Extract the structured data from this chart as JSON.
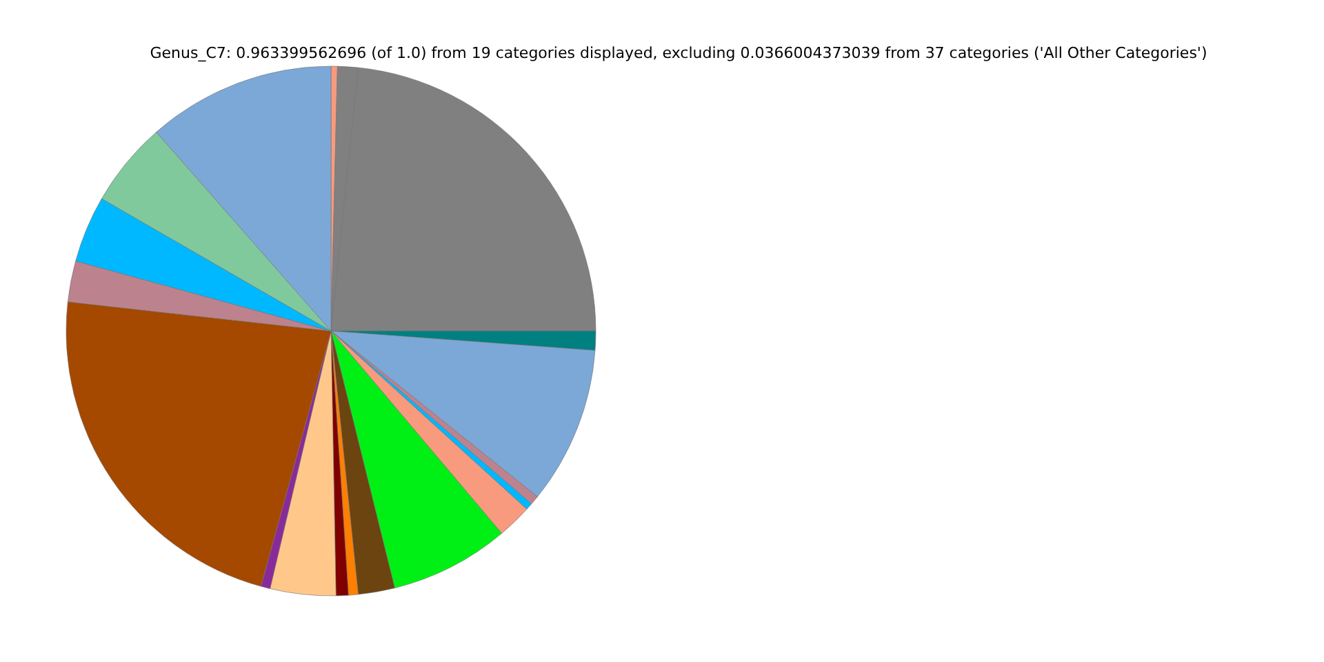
{
  "chart_data": {
    "type": "pie",
    "title": "Genus_C7: 0.963399562696 (of 1.0) from 19 categories displayed, excluding 0.0366004373039 from 37 categories ('All Other Categories')",
    "categories": [
      null,
      null,
      null,
      null,
      null,
      null,
      null,
      null,
      null,
      null,
      null,
      null,
      null,
      null,
      null,
      null,
      null,
      null,
      null
    ],
    "values": [
      0.39,
      1.26,
      23.35,
      1.17,
      9.6,
      0.56,
      0.42,
      2.1,
      7.28,
      2.23,
      0.59,
      0.75,
      4.0,
      0.56,
      22.5,
      2.5,
      4.07,
      5.2,
      11.47
    ],
    "colors": [
      "#f89a7e",
      "#808080",
      "#808080",
      "#008080",
      "#7ca8d8",
      "#bc838e",
      "#00b8ff",
      "#f89a7e",
      "#00f015",
      "#6b4410",
      "#ff7f00",
      "#800000",
      "#ffc88a",
      "#8a2a9a",
      "#a54800",
      "#bc838e",
      "#00b8ff",
      "#80c99c",
      "#7ca8d8"
    ]
  }
}
